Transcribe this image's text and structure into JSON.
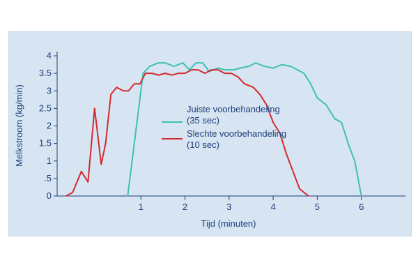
{
  "chart_data": {
    "type": "line",
    "xlabel": "Tijd (minuten)",
    "ylabel": "Melkstroom (kg/min)",
    "xlim": [
      -0.9,
      7.0
    ],
    "ylim": [
      0,
      4
    ],
    "x_ticks": [
      1,
      2,
      3,
      4,
      5,
      6
    ],
    "y_ticks": [
      0,
      0.5,
      1,
      1.5,
      2,
      2.5,
      3,
      3.5,
      4
    ],
    "y_tick_labels": [
      "0",
      ".5",
      "1",
      "1.5",
      "2",
      "2.5",
      "3",
      "3.5",
      "4"
    ],
    "grid": false,
    "legend_position": "center",
    "series": [
      {
        "name": "Juiste voorbehandeling",
        "name_line2": "(35 sec)",
        "color": "#3fc0b2",
        "points": [
          [
            0.7,
            0.0
          ],
          [
            0.8,
            1.0
          ],
          [
            1.05,
            3.5
          ],
          [
            1.2,
            3.7
          ],
          [
            1.4,
            3.8
          ],
          [
            1.55,
            3.8
          ],
          [
            1.75,
            3.7
          ],
          [
            1.95,
            3.8
          ],
          [
            2.1,
            3.6
          ],
          [
            2.25,
            3.8
          ],
          [
            2.4,
            3.8
          ],
          [
            2.55,
            3.55
          ],
          [
            2.75,
            3.65
          ],
          [
            2.9,
            3.6
          ],
          [
            3.1,
            3.6
          ],
          [
            3.25,
            3.65
          ],
          [
            3.45,
            3.7
          ],
          [
            3.6,
            3.8
          ],
          [
            3.8,
            3.7
          ],
          [
            4.0,
            3.65
          ],
          [
            4.2,
            3.75
          ],
          [
            4.4,
            3.7
          ],
          [
            4.7,
            3.5
          ],
          [
            4.85,
            3.2
          ],
          [
            5.0,
            2.8
          ],
          [
            5.2,
            2.6
          ],
          [
            5.4,
            2.2
          ],
          [
            5.55,
            2.1
          ],
          [
            5.7,
            1.5
          ],
          [
            5.85,
            1.0
          ],
          [
            6.0,
            0.0
          ]
        ]
      },
      {
        "name": "Slechte voorbehandeling",
        "name_line2": "(10 sec)",
        "color": "#d42a2e",
        "points": [
          [
            -0.7,
            0.0
          ],
          [
            -0.55,
            0.1
          ],
          [
            -0.35,
            0.7
          ],
          [
            -0.2,
            0.4
          ],
          [
            -0.05,
            2.5
          ],
          [
            0.1,
            0.9
          ],
          [
            0.2,
            1.5
          ],
          [
            0.32,
            2.9
          ],
          [
            0.45,
            3.1
          ],
          [
            0.6,
            3.0
          ],
          [
            0.72,
            3.0
          ],
          [
            0.85,
            3.2
          ],
          [
            0.98,
            3.2
          ],
          [
            1.1,
            3.5
          ],
          [
            1.25,
            3.5
          ],
          [
            1.4,
            3.45
          ],
          [
            1.55,
            3.5
          ],
          [
            1.7,
            3.45
          ],
          [
            1.85,
            3.5
          ],
          [
            2.0,
            3.5
          ],
          [
            2.15,
            3.6
          ],
          [
            2.3,
            3.6
          ],
          [
            2.45,
            3.5
          ],
          [
            2.6,
            3.6
          ],
          [
            2.75,
            3.6
          ],
          [
            2.9,
            3.5
          ],
          [
            3.05,
            3.5
          ],
          [
            3.2,
            3.4
          ],
          [
            3.35,
            3.2
          ],
          [
            3.55,
            3.1
          ],
          [
            3.7,
            2.9
          ],
          [
            3.85,
            2.6
          ],
          [
            4.0,
            2.1
          ],
          [
            4.15,
            1.8
          ],
          [
            4.3,
            1.2
          ],
          [
            4.45,
            0.7
          ],
          [
            4.6,
            0.2
          ],
          [
            4.8,
            0.0
          ]
        ]
      }
    ]
  }
}
